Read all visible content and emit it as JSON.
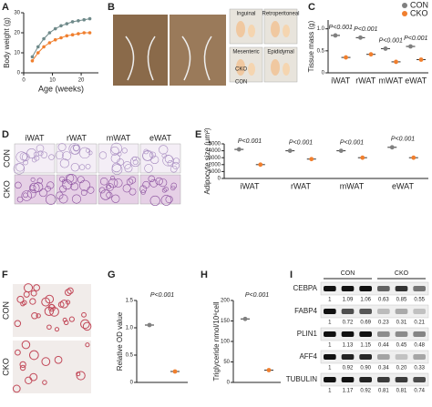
{
  "panels": [
    "A",
    "B",
    "C",
    "D",
    "E",
    "F",
    "G",
    "H",
    "I"
  ],
  "chart_data": [
    {
      "type": "line",
      "ylabel": "Body weight (g)",
      "xlabel": "Age (weeks)",
      "x": [
        3,
        5,
        7,
        9,
        11,
        13,
        15,
        17,
        19,
        21,
        23
      ],
      "xlim": [
        0,
        26
      ],
      "xticks": [
        0,
        10,
        20
      ],
      "ylim": [
        0,
        30
      ],
      "yticks": [
        0,
        10,
        20,
        30
      ],
      "series": [
        {
          "color": "#6f8a8a",
          "values": [
            8,
            13,
            17,
            20,
            22,
            23.5,
            24.5,
            25.5,
            26,
            26.5,
            27
          ]
        },
        {
          "color": "#f07f2e",
          "values": [
            6,
            10,
            13,
            15,
            16.5,
            17.5,
            18.5,
            19,
            19.5,
            20,
            20
          ]
        }
      ]
    },
    {
      "type": "dot",
      "ylabel": "Tissue mass (g)",
      "categories": [
        "iWAT",
        "rWAT",
        "mWAT",
        "eWAT"
      ],
      "ylim": [
        0,
        1.2
      ],
      "yticks": [
        0,
        0.5,
        {
          "value": 1,
          "label": "1.0"
        }
      ],
      "legend": "top-right",
      "annotations": [
        "P<0.001",
        "P<0.001",
        "P<0.001",
        "P<0.001"
      ],
      "series": [
        {
          "name": "CON",
          "color": "#808080",
          "values": [
            0.85,
            0.8,
            0.55,
            0.6
          ]
        },
        {
          "name": "CKO",
          "color": "#f07f2e",
          "values": [
            0.35,
            0.42,
            0.25,
            0.3
          ]
        }
      ]
    },
    {
      "type": "dot",
      "ylabel": "Adipocyte size (µm²)",
      "categories": [
        "iWAT",
        "rWAT",
        "mWAT",
        "eWAT"
      ],
      "ylim": [
        0,
        5000
      ],
      "yticks": [
        0,
        1000,
        2000,
        3000,
        4000,
        5000
      ],
      "annotations": [
        "P<0.001",
        "P<0.001",
        "P<0.001",
        "P<0.001"
      ],
      "series": [
        {
          "color": "#808080",
          "values": [
            4200,
            4000,
            4000,
            4500
          ]
        },
        {
          "color": "#f07f2e",
          "values": [
            2000,
            2800,
            3000,
            3000
          ]
        }
      ]
    },
    {
      "type": "dot",
      "ylabel": "Relative OD value",
      "categories": [
        null,
        null
      ],
      "ylim": [
        0,
        1.5
      ],
      "yticks": [
        0,
        0.5,
        {
          "value": 1,
          "label": "1.0"
        },
        1.5
      ],
      "annotations": [
        "P<0.001"
      ],
      "series": [
        {
          "color": "#808080",
          "values": [
            1.05,
            null
          ]
        },
        {
          "color": "#f07f2e",
          "values": [
            null,
            0.2
          ]
        }
      ]
    },
    {
      "type": "dot",
      "ylabel": "Triglyceride nmol/10⁶cell",
      "categories": [
        null,
        null
      ],
      "ylim": [
        0,
        200
      ],
      "yticks": [
        0,
        50,
        100,
        150,
        200
      ],
      "annotations": [
        "P<0.001"
      ],
      "series": [
        {
          "color": "#808080",
          "values": [
            155,
            null
          ]
        },
        {
          "color": "#f07f2e",
          "values": [
            null,
            30
          ]
        }
      ]
    }
  ],
  "photos": {
    "groups": [
      "CON",
      "CKO"
    ],
    "depots": [
      "Inguinal",
      "Retroperitoneal",
      "Mesenteric",
      "Epididymal"
    ],
    "tube": [
      "CON",
      "CKO"
    ]
  },
  "histology": {
    "columns": [
      "iWAT",
      "rWAT",
      "mWAT",
      "eWAT"
    ],
    "rows": [
      "CON",
      "CKO"
    ]
  },
  "staining": {
    "rows": [
      "CON",
      "CKO"
    ]
  },
  "blot": {
    "groups": [
      "CON",
      "CKO"
    ],
    "bands": [
      {
        "label": "CEBPA",
        "ratios": [
          "1",
          "1.09",
          "1.06",
          "0.63",
          "0.85",
          "0.55"
        ]
      },
      {
        "label": "FABP4",
        "ratios": [
          "1",
          "0.72",
          "0.69",
          "0.23",
          "0.31",
          "0.21"
        ]
      },
      {
        "label": "PLIN1",
        "ratios": [
          "1",
          "1.13",
          "1.15",
          "0.44",
          "0.45",
          "0.48"
        ]
      },
      {
        "label": "AFF4",
        "ratios": [
          "1",
          "0.92",
          "0.90",
          "0.34",
          "0.20",
          "0.33"
        ]
      },
      {
        "label": "TUBULIN",
        "ratios": [
          "1",
          "1.17",
          "0.92",
          "0.81",
          "0.81",
          "0.74"
        ]
      }
    ]
  }
}
